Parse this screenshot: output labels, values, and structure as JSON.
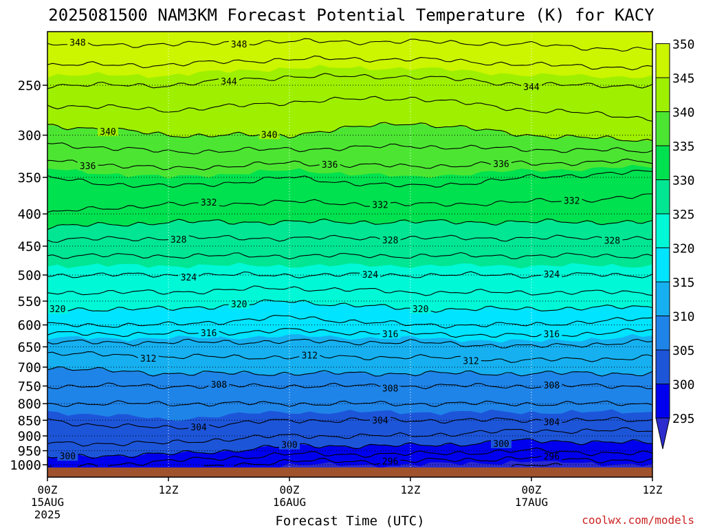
{
  "chart_data": {
    "type": "heatmap",
    "title": "2025081500 NAM3KM Forecast Potential Temperature (K) for KACY",
    "xlabel": "Forecast Time (UTC)",
    "ylabel": "",
    "credit": "coolwx.com/models",
    "y_scale": "log-pressure",
    "ylim": [
      1030,
      200
    ],
    "pressure_ticks": [
      250,
      300,
      350,
      400,
      450,
      500,
      550,
      600,
      650,
      700,
      750,
      800,
      850,
      900,
      950,
      1000
    ],
    "xlim_hours": [
      0,
      60
    ],
    "x_ticks": [
      {
        "hour": 0,
        "label": "00Z",
        "date": "15AUG",
        "year": "2025"
      },
      {
        "hour": 12,
        "label": "12Z",
        "date": "",
        "year": ""
      },
      {
        "hour": 24,
        "label": "00Z",
        "date": "16AUG",
        "year": ""
      },
      {
        "hour": 36,
        "label": "12Z",
        "date": "",
        "year": ""
      },
      {
        "hour": 48,
        "label": "00Z",
        "date": "17AUG",
        "year": ""
      },
      {
        "hour": 60,
        "label": "12Z",
        "date": "",
        "year": ""
      }
    ],
    "grid": true,
    "colorbar": {
      "labels": [
        295,
        300,
        305,
        310,
        315,
        320,
        325,
        330,
        335,
        340,
        345,
        350
      ],
      "bins": [
        {
          "range": "<295",
          "color": "#2c2ccf"
        },
        {
          "range": "295-300",
          "color": "#0000ee"
        },
        {
          "range": "300-305",
          "color": "#1d55d9"
        },
        {
          "range": "305-310",
          "color": "#1f84e8"
        },
        {
          "range": "310-315",
          "color": "#16b0f0"
        },
        {
          "range": "315-320",
          "color": "#00e4ff"
        },
        {
          "range": "320-325",
          "color": "#00f8d6"
        },
        {
          "range": "325-330",
          "color": "#00e693"
        },
        {
          "range": "330-335",
          "color": "#00e14f"
        },
        {
          "range": "335-340",
          "color": "#4ce632"
        },
        {
          "range": "340-345",
          "color": "#9ef000"
        },
        {
          "range": "345-350",
          "color": "#ccf500"
        },
        {
          "range": ">350",
          "color": "#ffe600"
        }
      ]
    },
    "ground_color": "#a0522d",
    "contour_interval_K": 2,
    "contour_labels": [
      {
        "value": 348,
        "hours": [
          3,
          19
        ]
      },
      {
        "value": 344,
        "hours": [
          18,
          48
        ]
      },
      {
        "value": 340,
        "hours": [
          6,
          22
        ]
      },
      {
        "value": 336,
        "hours": [
          4,
          28,
          45
        ]
      },
      {
        "value": 332,
        "hours": [
          16,
          33,
          52
        ]
      },
      {
        "value": 328,
        "hours": [
          13,
          34,
          56
        ]
      },
      {
        "value": 324,
        "hours": [
          14,
          32,
          50
        ]
      },
      {
        "value": 320,
        "hours": [
          1,
          19,
          37
        ]
      },
      {
        "value": 316,
        "hours": [
          16,
          34,
          50
        ]
      },
      {
        "value": 312,
        "hours": [
          10,
          26,
          42
        ]
      },
      {
        "value": 308,
        "hours": [
          17,
          34,
          50
        ]
      },
      {
        "value": 304,
        "hours": [
          15,
          33,
          50
        ]
      },
      {
        "value": 300,
        "hours": [
          2,
          24,
          45
        ]
      },
      {
        "value": 296,
        "hours": [
          10,
          34,
          50
        ]
      }
    ],
    "profile_hours": [
      0,
      12,
      24,
      36,
      48,
      60
    ],
    "profiles": [
      {
        "p": 1030,
        "theta": [
          297,
          296,
          294,
          294,
          293,
          294
        ]
      },
      {
        "p": 1000,
        "theta": [
          299,
          297,
          295,
          295,
          294,
          295
        ]
      },
      {
        "p": 950,
        "theta": [
          301,
          301,
          299,
          299,
          298,
          299
        ]
      },
      {
        "p": 900,
        "theta": [
          303,
          303,
          302,
          302,
          301,
          301
        ]
      },
      {
        "p": 850,
        "theta": [
          304,
          305,
          304,
          304,
          304,
          304
        ]
      },
      {
        "p": 800,
        "theta": [
          306,
          306,
          306,
          306,
          306,
          306
        ]
      },
      {
        "p": 750,
        "theta": [
          308,
          308,
          308,
          308,
          308,
          308
        ]
      },
      {
        "p": 700,
        "theta": [
          310,
          311,
          311,
          311,
          311,
          311
        ]
      },
      {
        "p": 650,
        "theta": [
          313,
          313,
          313,
          313,
          314,
          313
        ]
      },
      {
        "p": 600,
        "theta": [
          318,
          318,
          317,
          318,
          318,
          317
        ]
      },
      {
        "p": 550,
        "theta": [
          321,
          321,
          320,
          321,
          321,
          321
        ]
      },
      {
        "p": 500,
        "theta": [
          324,
          324,
          324,
          324,
          324,
          324
        ]
      },
      {
        "p": 450,
        "theta": [
          327,
          327,
          327,
          327,
          327,
          327
        ]
      },
      {
        "p": 400,
        "theta": [
          332,
          331,
          331,
          331,
          331,
          331
        ]
      },
      {
        "p": 350,
        "theta": [
          334,
          335,
          334,
          335,
          334,
          333
        ]
      },
      {
        "p": 300,
        "theta": [
          339,
          340,
          340,
          339,
          340,
          341
        ]
      },
      {
        "p": 250,
        "theta": [
          344,
          344,
          343,
          343,
          344,
          344
        ]
      },
      {
        "p": 200,
        "theta": [
          350,
          350,
          350,
          350,
          350,
          351
        ]
      }
    ]
  }
}
